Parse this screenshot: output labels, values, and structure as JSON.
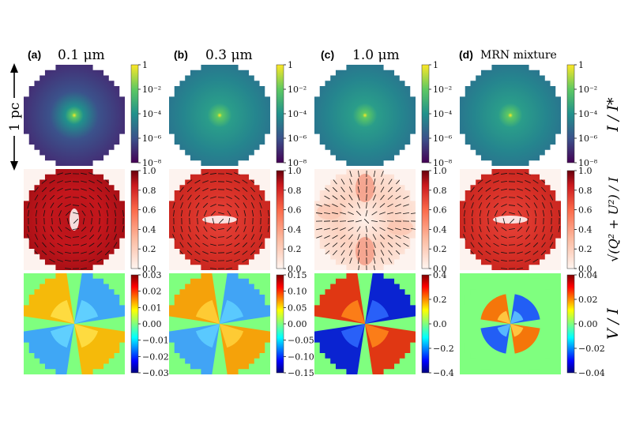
{
  "figure": {
    "scale_bar_label": "1 pc",
    "row_labels": [
      "I / I*",
      "√(Q² + U²) / I",
      "V / I"
    ]
  },
  "panels": [
    {
      "label": "(a)",
      "title": "0.1 μm"
    },
    {
      "label": "(b)",
      "title": "0.3 μm"
    },
    {
      "label": "(c)",
      "title": "1.0 μm"
    },
    {
      "label": "(d)",
      "title": "MRN mixture"
    }
  ],
  "chart_data": {
    "type": "heatmap",
    "rows": [
      {
        "quantity": "I/I*",
        "colormap": "viridis",
        "scale": "log",
        "panels": [
          {
            "range": [
              1e-08,
              1
            ],
            "ticks": [
              "1",
              "10⁻²",
              "10⁻⁴",
              "10⁻⁶",
              "10⁻⁸"
            ]
          },
          {
            "range": [
              1e-08,
              1
            ],
            "ticks": [
              "1",
              "10⁻²",
              "10⁻⁴",
              "10⁻⁶",
              "10⁻⁸"
            ]
          },
          {
            "range": [
              1e-08,
              1
            ],
            "ticks": [
              "1",
              "10⁻²",
              "10⁻⁴",
              "10⁻⁶",
              "10⁻⁸"
            ]
          },
          {
            "range": [
              1e-08,
              1
            ],
            "ticks": [
              "1",
              "10⁻²",
              "10⁻⁴",
              "10⁻⁶",
              "10⁻⁸"
            ]
          }
        ]
      },
      {
        "quantity": "sqrt(Q^2+U^2)/I",
        "colormap": "reds",
        "scale": "linear",
        "panels": [
          {
            "range": [
              0.0,
              1.0
            ],
            "ticks": [
              "1.0",
              "0.8",
              "0.6",
              "0.4",
              "0.2",
              "0.0"
            ]
          },
          {
            "range": [
              0.0,
              1.0
            ],
            "ticks": [
              "1.0",
              "0.8",
              "0.6",
              "0.4",
              "0.2",
              "0.0"
            ]
          },
          {
            "range": [
              0.0,
              1.0
            ],
            "ticks": [
              "1.0",
              "0.8",
              "0.6",
              "0.4",
              "0.2",
              "0.0"
            ]
          },
          {
            "range": [
              0.0,
              1.0
            ],
            "ticks": [
              "1.0",
              "0.8",
              "0.6",
              "0.4",
              "0.2",
              "0.0"
            ]
          }
        ]
      },
      {
        "quantity": "V/I",
        "colormap": "jet",
        "scale": "linear",
        "panels": [
          {
            "range": [
              -0.03,
              0.03
            ],
            "ticks": [
              "0.03",
              "0.02",
              "0.01",
              "0.00",
              "−0.01",
              "−0.02",
              "−0.03"
            ]
          },
          {
            "range": [
              -0.15,
              0.15
            ],
            "ticks": [
              "0.15",
              "0.10",
              "0.05",
              "0.00",
              "−0.05",
              "−0.10",
              "−0.15"
            ]
          },
          {
            "range": [
              -0.5,
              0.5
            ],
            "ticks": [
              "0.4",
              "0.2",
              "0.0",
              "−0.2",
              "−0.4"
            ]
          },
          {
            "range": [
              -0.05,
              0.05
            ],
            "ticks": [
              "0.04",
              "0.02",
              "0.00",
              "−0.02",
              "−0.04"
            ]
          }
        ]
      }
    ],
    "colors": {
      "viridis": [
        "#440154",
        "#3b528b",
        "#21918c",
        "#5ec962",
        "#fde725"
      ],
      "reds": [
        "#fff5f0",
        "#fcbba1",
        "#fb6a4a",
        "#cb181d",
        "#67000d"
      ],
      "jet": [
        "#00007f",
        "#0000ff",
        "#00ffff",
        "#7fff7f",
        "#ffff00",
        "#ff0000",
        "#7f0000"
      ]
    }
  }
}
